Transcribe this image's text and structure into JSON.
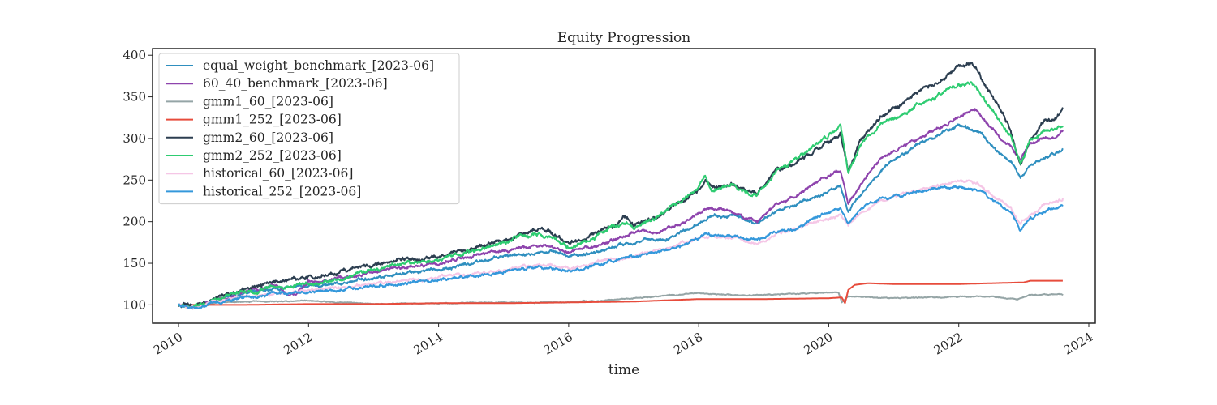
{
  "chart_data": {
    "type": "line",
    "title": "Equity Progression",
    "xlabel": "time",
    "ylabel": "",
    "xlim": [
      2009.6,
      2024.1
    ],
    "ylim": [
      78,
      408
    ],
    "xticks": [
      2010,
      2012,
      2014,
      2016,
      2018,
      2020,
      2022,
      2024
    ],
    "xtick_labels": [
      "2010",
      "2012",
      "2014",
      "2016",
      "2018",
      "2020",
      "2022",
      "2024"
    ],
    "yticks": [
      100,
      150,
      200,
      250,
      300,
      350,
      400
    ],
    "ytick_labels": [
      "100",
      "150",
      "200",
      "250",
      "300",
      "350",
      "400"
    ],
    "grid": false,
    "legend_position": "upper-left",
    "series": [
      {
        "name": "equal_weight_benchmark_[2023-06]",
        "color": "#2f8fbf",
        "noise": 2.0,
        "points": [
          [
            2010.0,
            100
          ],
          [
            2010.25,
            97
          ],
          [
            2010.5,
            103
          ],
          [
            2011.0,
            113
          ],
          [
            2011.5,
            118
          ],
          [
            2012.0,
            123
          ],
          [
            2012.5,
            126
          ],
          [
            2013.0,
            133
          ],
          [
            2013.5,
            138
          ],
          [
            2014.0,
            143
          ],
          [
            2014.5,
            150
          ],
          [
            2015.0,
            158
          ],
          [
            2015.5,
            165
          ],
          [
            2015.75,
            163
          ],
          [
            2016.0,
            158
          ],
          [
            2016.5,
            165
          ],
          [
            2016.9,
            175
          ],
          [
            2017.5,
            180
          ],
          [
            2018.0,
            198
          ],
          [
            2018.1,
            205
          ],
          [
            2018.5,
            207
          ],
          [
            2018.9,
            198
          ],
          [
            2019.2,
            213
          ],
          [
            2019.5,
            220
          ],
          [
            2020.0,
            237
          ],
          [
            2020.18,
            242
          ],
          [
            2020.3,
            213
          ],
          [
            2020.5,
            232
          ],
          [
            2020.8,
            262
          ],
          [
            2021.0,
            275
          ],
          [
            2021.5,
            298
          ],
          [
            2022.0,
            316
          ],
          [
            2022.3,
            308
          ],
          [
            2022.6,
            285
          ],
          [
            2022.8,
            272
          ],
          [
            2022.95,
            253
          ],
          [
            2023.1,
            268
          ],
          [
            2023.3,
            276
          ],
          [
            2023.5,
            282
          ],
          [
            2023.6,
            288
          ]
        ]
      },
      {
        "name": "60_40_benchmark_[2023-06]",
        "color": "#8e44ad",
        "noise": 2.0,
        "points": [
          [
            2010.0,
            100
          ],
          [
            2010.25,
            98
          ],
          [
            2010.5,
            104
          ],
          [
            2011.0,
            115
          ],
          [
            2011.5,
            122
          ],
          [
            2011.7,
            110
          ],
          [
            2012.0,
            127
          ],
          [
            2012.5,
            132
          ],
          [
            2013.0,
            140
          ],
          [
            2013.5,
            145
          ],
          [
            2014.0,
            150
          ],
          [
            2014.5,
            158
          ],
          [
            2015.0,
            166
          ],
          [
            2015.5,
            172
          ],
          [
            2015.75,
            170
          ],
          [
            2016.0,
            165
          ],
          [
            2016.5,
            172
          ],
          [
            2016.9,
            185
          ],
          [
            2017.5,
            190
          ],
          [
            2018.0,
            210
          ],
          [
            2018.1,
            216
          ],
          [
            2018.5,
            212
          ],
          [
            2018.9,
            200
          ],
          [
            2019.2,
            222
          ],
          [
            2019.5,
            230
          ],
          [
            2020.0,
            255
          ],
          [
            2020.18,
            262
          ],
          [
            2020.3,
            220
          ],
          [
            2020.5,
            245
          ],
          [
            2020.8,
            275
          ],
          [
            2021.0,
            285
          ],
          [
            2021.5,
            305
          ],
          [
            2022.0,
            325
          ],
          [
            2022.25,
            335
          ],
          [
            2022.6,
            305
          ],
          [
            2022.8,
            290
          ],
          [
            2022.95,
            275
          ],
          [
            2023.1,
            292
          ],
          [
            2023.3,
            300
          ],
          [
            2023.5,
            303
          ],
          [
            2023.6,
            310
          ]
        ]
      },
      {
        "name": "gmm1_60_[2023-06]",
        "color": "#95a5a6",
        "noise": 0.6,
        "points": [
          [
            2010.0,
            100
          ],
          [
            2010.4,
            98
          ],
          [
            2010.6,
            103
          ],
          [
            2011.0,
            104
          ],
          [
            2012.0,
            105
          ],
          [
            2013.0,
            101
          ],
          [
            2014.0,
            102
          ],
          [
            2015.0,
            103
          ],
          [
            2016.0,
            103
          ],
          [
            2016.5,
            105
          ],
          [
            2017.0,
            108
          ],
          [
            2018.0,
            114
          ],
          [
            2018.5,
            112
          ],
          [
            2019.0,
            112
          ],
          [
            2020.0,
            115
          ],
          [
            2020.15,
            115
          ],
          [
            2020.2,
            103
          ],
          [
            2020.3,
            110
          ],
          [
            2021.0,
            108
          ],
          [
            2022.0,
            110
          ],
          [
            2022.5,
            110
          ],
          [
            2022.8,
            108
          ],
          [
            2022.9,
            106
          ],
          [
            2023.1,
            112
          ],
          [
            2023.6,
            113
          ]
        ]
      },
      {
        "name": "gmm1_252_[2023-06]",
        "color": "#e74c3c",
        "noise": 0.0,
        "points": [
          [
            2010.0,
            100
          ],
          [
            2011.0,
            100
          ],
          [
            2012.0,
            101
          ],
          [
            2013.0,
            101
          ],
          [
            2014.0,
            102
          ],
          [
            2015.0,
            102
          ],
          [
            2016.0,
            103
          ],
          [
            2017.0,
            104
          ],
          [
            2018.0,
            107
          ],
          [
            2019.0,
            107
          ],
          [
            2020.0,
            108
          ],
          [
            2020.2,
            109
          ],
          [
            2020.25,
            102
          ],
          [
            2020.3,
            118
          ],
          [
            2020.4,
            124
          ],
          [
            2020.6,
            126
          ],
          [
            2021.0,
            125
          ],
          [
            2022.0,
            125
          ],
          [
            2022.5,
            126
          ],
          [
            2023.0,
            127
          ],
          [
            2023.1,
            129
          ],
          [
            2023.6,
            129
          ]
        ]
      },
      {
        "name": "gmm2_60_[2023-06]",
        "color": "#2c3e50",
        "noise": 2.5,
        "points": [
          [
            2010.0,
            100
          ],
          [
            2010.25,
            98
          ],
          [
            2010.5,
            105
          ],
          [
            2011.0,
            118
          ],
          [
            2011.5,
            128
          ],
          [
            2012.0,
            132
          ],
          [
            2012.5,
            140
          ],
          [
            2013.0,
            148
          ],
          [
            2013.5,
            155
          ],
          [
            2014.0,
            158
          ],
          [
            2014.5,
            168
          ],
          [
            2015.0,
            178
          ],
          [
            2015.5,
            190
          ],
          [
            2015.75,
            186
          ],
          [
            2016.0,
            172
          ],
          [
            2016.5,
            188
          ],
          [
            2016.9,
            205
          ],
          [
            2017.0,
            195
          ],
          [
            2017.5,
            210
          ],
          [
            2018.0,
            240
          ],
          [
            2018.1,
            250
          ],
          [
            2018.2,
            240
          ],
          [
            2018.5,
            245
          ],
          [
            2018.9,
            232
          ],
          [
            2019.2,
            260
          ],
          [
            2019.5,
            272
          ],
          [
            2020.0,
            295
          ],
          [
            2020.18,
            305
          ],
          [
            2020.3,
            260
          ],
          [
            2020.5,
            300
          ],
          [
            2020.8,
            325
          ],
          [
            2021.0,
            335
          ],
          [
            2021.5,
            360
          ],
          [
            2022.0,
            385
          ],
          [
            2022.2,
            390
          ],
          [
            2022.6,
            340
          ],
          [
            2022.8,
            310
          ],
          [
            2022.95,
            265
          ],
          [
            2023.1,
            300
          ],
          [
            2023.3,
            318
          ],
          [
            2023.5,
            325
          ],
          [
            2023.6,
            335
          ]
        ]
      },
      {
        "name": "gmm2_252_[2023-06]",
        "color": "#2ecc71",
        "noise": 2.5,
        "points": [
          [
            2010.0,
            100
          ],
          [
            2010.25,
            98
          ],
          [
            2010.5,
            105
          ],
          [
            2011.0,
            116
          ],
          [
            2011.5,
            122
          ],
          [
            2012.0,
            125
          ],
          [
            2012.5,
            132
          ],
          [
            2013.0,
            142
          ],
          [
            2013.5,
            150
          ],
          [
            2014.0,
            155
          ],
          [
            2014.5,
            165
          ],
          [
            2015.0,
            175
          ],
          [
            2015.5,
            185
          ],
          [
            2015.75,
            182
          ],
          [
            2016.0,
            168
          ],
          [
            2016.5,
            185
          ],
          [
            2016.9,
            200
          ],
          [
            2017.0,
            192
          ],
          [
            2017.5,
            212
          ],
          [
            2018.0,
            242
          ],
          [
            2018.1,
            255
          ],
          [
            2018.2,
            238
          ],
          [
            2018.5,
            245
          ],
          [
            2018.9,
            232
          ],
          [
            2019.2,
            262
          ],
          [
            2019.5,
            275
          ],
          [
            2020.0,
            305
          ],
          [
            2020.18,
            315
          ],
          [
            2020.3,
            258
          ],
          [
            2020.5,
            295
          ],
          [
            2020.8,
            318
          ],
          [
            2021.0,
            322
          ],
          [
            2021.5,
            345
          ],
          [
            2022.0,
            362
          ],
          [
            2022.2,
            368
          ],
          [
            2022.6,
            325
          ],
          [
            2022.8,
            302
          ],
          [
            2022.95,
            270
          ],
          [
            2023.1,
            295
          ],
          [
            2023.3,
            306
          ],
          [
            2023.5,
            310
          ],
          [
            2023.6,
            315
          ]
        ]
      },
      {
        "name": "historical_60_[2023-06]",
        "color": "#f5c6e6",
        "noise": 1.8,
        "points": [
          [
            2010.0,
            100
          ],
          [
            2010.25,
            97
          ],
          [
            2010.5,
            103
          ],
          [
            2011.0,
            110
          ],
          [
            2012.0,
            118
          ],
          [
            2013.0,
            125
          ],
          [
            2014.0,
            133
          ],
          [
            2015.0,
            142
          ],
          [
            2015.5,
            148
          ],
          [
            2016.0,
            145
          ],
          [
            2016.5,
            152
          ],
          [
            2017.0,
            158
          ],
          [
            2017.5,
            168
          ],
          [
            2018.0,
            180
          ],
          [
            2018.5,
            182
          ],
          [
            2018.9,
            172
          ],
          [
            2019.2,
            185
          ],
          [
            2019.5,
            192
          ],
          [
            2020.0,
            205
          ],
          [
            2020.18,
            210
          ],
          [
            2020.3,
            195
          ],
          [
            2020.5,
            210
          ],
          [
            2020.8,
            225
          ],
          [
            2021.0,
            230
          ],
          [
            2021.5,
            240
          ],
          [
            2022.0,
            250
          ],
          [
            2022.3,
            245
          ],
          [
            2022.6,
            228
          ],
          [
            2022.8,
            218
          ],
          [
            2022.95,
            197
          ],
          [
            2023.1,
            210
          ],
          [
            2023.3,
            220
          ],
          [
            2023.5,
            225
          ],
          [
            2023.6,
            228
          ]
        ]
      },
      {
        "name": "historical_252_[2023-06]",
        "color": "#3498db",
        "noise": 1.8,
        "points": [
          [
            2010.0,
            100
          ],
          [
            2010.25,
            96
          ],
          [
            2010.5,
            102
          ],
          [
            2011.0,
            108
          ],
          [
            2011.5,
            113
          ],
          [
            2012.0,
            116
          ],
          [
            2013.0,
            122
          ],
          [
            2014.0,
            130
          ],
          [
            2015.0,
            140
          ],
          [
            2015.5,
            146
          ],
          [
            2016.0,
            140
          ],
          [
            2016.5,
            150
          ],
          [
            2017.0,
            158
          ],
          [
            2017.5,
            165
          ],
          [
            2018.0,
            180
          ],
          [
            2018.1,
            185
          ],
          [
            2018.5,
            182
          ],
          [
            2018.9,
            178
          ],
          [
            2019.2,
            188
          ],
          [
            2019.5,
            192
          ],
          [
            2020.0,
            212
          ],
          [
            2020.18,
            218
          ],
          [
            2020.3,
            198
          ],
          [
            2020.5,
            215
          ],
          [
            2020.8,
            228
          ],
          [
            2021.0,
            230
          ],
          [
            2021.5,
            238
          ],
          [
            2022.0,
            242
          ],
          [
            2022.3,
            238
          ],
          [
            2022.6,
            222
          ],
          [
            2022.8,
            212
          ],
          [
            2022.95,
            190
          ],
          [
            2023.1,
            205
          ],
          [
            2023.3,
            212
          ],
          [
            2023.5,
            216
          ],
          [
            2023.6,
            220
          ]
        ]
      }
    ]
  }
}
